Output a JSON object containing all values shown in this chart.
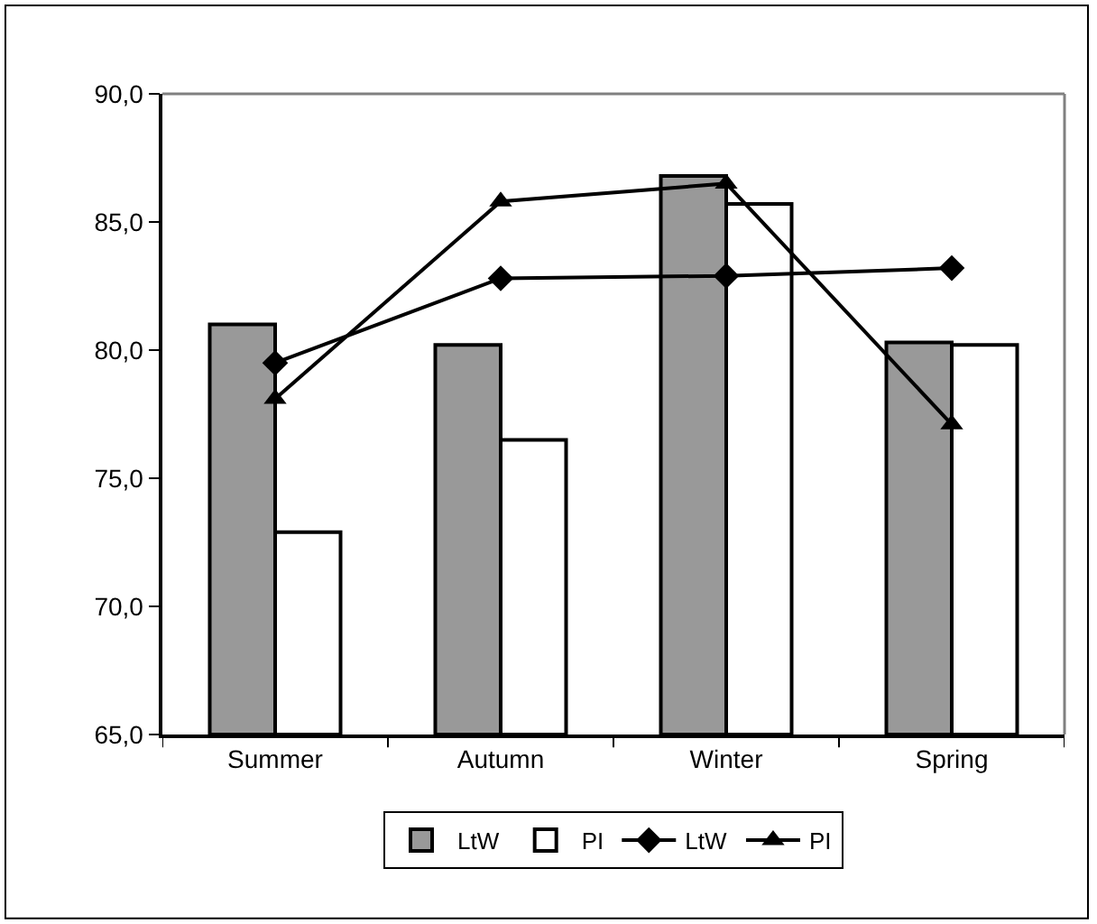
{
  "chart_data": {
    "type": "bar",
    "categories": [
      "Summer",
      "Autumn",
      "Winter",
      "Spring"
    ],
    "series": [
      {
        "name": "LtW",
        "color": "#999999",
        "values": [
          81.0,
          80.2,
          86.8,
          80.3
        ]
      },
      {
        "name": "PI",
        "color": "#ffffff",
        "values": [
          72.9,
          76.5,
          85.7,
          80.2
        ]
      },
      {
        "name": "LtW",
        "type": "line",
        "color": "#000000",
        "marker": "diamond",
        "values": [
          79.5,
          82.8,
          82.9,
          83.2
        ]
      },
      {
        "name": "PI",
        "type": "line",
        "color": "#000000",
        "marker": "triangle",
        "values": [
          78.1,
          85.8,
          86.5,
          77.1
        ]
      }
    ],
    "ylim": [
      65,
      90
    ],
    "yticks": [
      {
        "value": 65,
        "label": "65,0"
      },
      {
        "value": 70,
        "label": "70,0"
      },
      {
        "value": 75,
        "label": "75,0"
      },
      {
        "value": 80,
        "label": "80,0"
      },
      {
        "value": 85,
        "label": "85,0"
      },
      {
        "value": 90,
        "label": "90,0"
      }
    ],
    "grid": false,
    "legend": "bottom"
  }
}
